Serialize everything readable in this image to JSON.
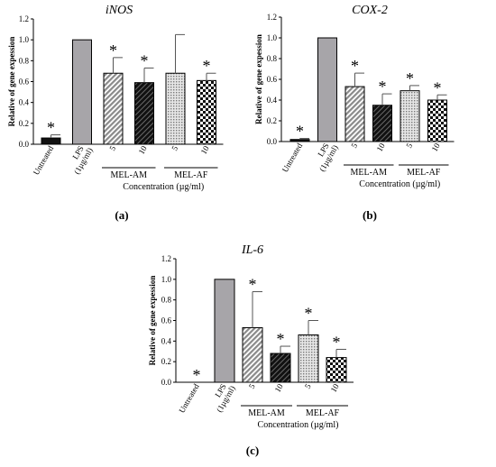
{
  "figure": {
    "shared_ylabel": "Relative of gene expession",
    "shared_xlabel": "Concentration (µg/ml)",
    "categories": [
      "Untreated",
      "LPS\n(1µg/ml)",
      "5",
      "10",
      "5",
      "10"
    ],
    "group_labels": [
      "MEL-AM",
      "MEL-AF"
    ],
    "significance_mark": "*",
    "colors": {
      "untreated": "#111111",
      "lps": "#a7a5a9",
      "am5": "#c9c9c9",
      "am10": "#1a1a1a",
      "af5": "#d9d9d9",
      "af10": "#ffffff"
    }
  },
  "chart_data": [
    {
      "type": "bar",
      "panel_label": "(a)",
      "title": "iNOS",
      "xlabel": "Concentration (µg/ml)",
      "ylabel": "Relative of gene expession",
      "ylim": [
        0,
        1.2
      ],
      "yticks": [
        "0.0",
        "0.2",
        "0.4",
        "0.6",
        "0.8",
        "1.0",
        "1.2"
      ],
      "categories": [
        "Untreated",
        "LPS (1µg/ml)",
        "MEL-AM 5",
        "MEL-AM 10",
        "MEL-AF 5",
        "MEL-AF 10"
      ],
      "values": [
        0.06,
        1.0,
        0.68,
        0.59,
        0.68,
        0.61
      ],
      "errors": [
        0.03,
        0,
        0.15,
        0.14,
        0.37,
        0.07
      ],
      "significant": [
        true,
        false,
        true,
        true,
        false,
        true
      ]
    },
    {
      "type": "bar",
      "panel_label": "(b)",
      "title": "COX-2",
      "xlabel": "Concentration (µg/ml)",
      "ylabel": "Relative of gene expession",
      "ylim": [
        0,
        1.2
      ],
      "yticks": [
        "0.0",
        "0.2",
        "0.4",
        "0.6",
        "0.8",
        "1.0",
        "1.2"
      ],
      "categories": [
        "Untreated",
        "LPS (1µg/ml)",
        "MEL-AM 5",
        "MEL-AM 10",
        "MEL-AF 5",
        "MEL-AF 10"
      ],
      "values": [
        0.02,
        1.0,
        0.53,
        0.35,
        0.49,
        0.4
      ],
      "errors": [
        0.01,
        0,
        0.13,
        0.11,
        0.05,
        0.05
      ],
      "significant": [
        true,
        false,
        true,
        true,
        true,
        true
      ]
    },
    {
      "type": "bar",
      "panel_label": "(c)",
      "title": "IL-6",
      "xlabel": "Concentration (µg/ml)",
      "ylabel": "Relative of gene expession",
      "ylim": [
        0,
        1.2
      ],
      "yticks": [
        "0.0",
        "0.2",
        "0.4",
        "0.6",
        "0.8",
        "1.0",
        "1.2"
      ],
      "categories": [
        "Untreated",
        "LPS (1µg/ml)",
        "MEL-AM 5",
        "MEL-AM 10",
        "MEL-AF 5",
        "MEL-AF 10"
      ],
      "values": [
        0.0,
        1.0,
        0.53,
        0.28,
        0.46,
        0.24
      ],
      "errors": [
        0,
        0,
        0.35,
        0.07,
        0.14,
        0.08
      ],
      "significant": [
        true,
        false,
        true,
        true,
        true,
        true
      ]
    }
  ]
}
